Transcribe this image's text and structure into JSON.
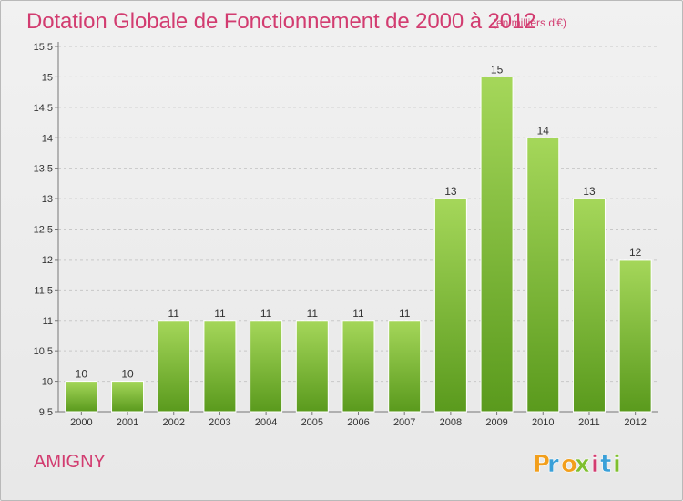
{
  "header": {
    "title": "Dotation Globale de Fonctionnement de 2000 à 2012",
    "subtitle": "(en milliers d'€)"
  },
  "footer": {
    "commune": "AMIGNY",
    "brand": [
      "P",
      "r",
      "o",
      "x",
      "i",
      "t",
      "i"
    ]
  },
  "colors": {
    "accent": "#d23c70",
    "bar_top": "#a5d75a",
    "bar_bottom": "#5a9a1d",
    "brand_letters": [
      "#f29f1c",
      "#3aa0d8",
      "#f29f1c",
      "#7fbf2f",
      "#d23c70",
      "#3aa0d8",
      "#7fbf2f"
    ]
  },
  "chart_data": {
    "type": "bar",
    "categories": [
      "2000",
      "2001",
      "2002",
      "2003",
      "2004",
      "2005",
      "2006",
      "2007",
      "2008",
      "2009",
      "2010",
      "2011",
      "2012"
    ],
    "values": [
      10,
      10,
      11,
      11,
      11,
      11,
      11,
      11,
      13,
      15,
      14,
      13,
      12
    ],
    "value_labels": [
      "10",
      "10",
      "11",
      "11",
      "11",
      "11",
      "11",
      "11",
      "13",
      "15",
      "14",
      "13",
      "12"
    ],
    "yticks": [
      9.5,
      10,
      10.5,
      11,
      11.5,
      12,
      12.5,
      13,
      13.5,
      14,
      14.5,
      15,
      15.5
    ],
    "ytick_labels": [
      "9.5",
      "10",
      "10.5",
      "11",
      "11.5",
      "12",
      "12.5",
      "13",
      "13.5",
      "14",
      "14.5",
      "15",
      "15.5"
    ],
    "ylim": [
      9.5,
      15.5
    ],
    "grid": true,
    "xlabel": "",
    "ylabel": ""
  }
}
